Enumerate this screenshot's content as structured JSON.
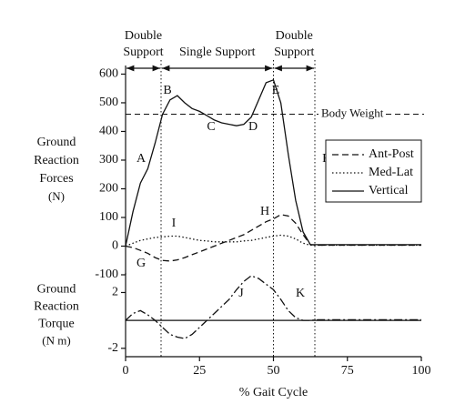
{
  "chart_data": [
    {
      "type": "line",
      "x": [
        0,
        2.5,
        5,
        7.5,
        10,
        12.5,
        15,
        17.5,
        20,
        22.5,
        25,
        27.5,
        30,
        32.5,
        35,
        37.5,
        40,
        42.5,
        45,
        47.5,
        50,
        52.5,
        55,
        57.5,
        60,
        62.5,
        65,
        67.5,
        70,
        72.5,
        75,
        77.5,
        80,
        82.5,
        85,
        87.5,
        90,
        92.5,
        95,
        97.5,
        100
      ],
      "series": [
        {
          "name": "Ant-Post",
          "color": "#111111",
          "dash": "dashed",
          "values": [
            0,
            -5,
            -15,
            -25,
            -40,
            -50,
            -52,
            -48,
            -40,
            -30,
            -20,
            -10,
            0,
            10,
            20,
            30,
            40,
            55,
            70,
            85,
            95,
            110,
            105,
            80,
            40,
            5,
            3,
            3,
            3,
            3,
            3,
            3,
            3,
            3,
            3,
            3,
            3,
            3,
            3,
            3,
            3
          ]
        },
        {
          "name": "Med-Lat",
          "color": "#111111",
          "dash": "dotted",
          "values": [
            0,
            10,
            20,
            25,
            30,
            32,
            35,
            35,
            30,
            25,
            20,
            18,
            15,
            15,
            15,
            15,
            18,
            20,
            25,
            30,
            35,
            38,
            35,
            25,
            10,
            3,
            3,
            3,
            3,
            3,
            3,
            3,
            3,
            3,
            3,
            3,
            3,
            3,
            3,
            3,
            3
          ]
        },
        {
          "name": "Vertical",
          "color": "#111111",
          "dash": "solid",
          "values": [
            0,
            120,
            220,
            270,
            360,
            460,
            510,
            525,
            500,
            480,
            470,
            455,
            440,
            430,
            425,
            420,
            425,
            450,
            510,
            570,
            580,
            500,
            320,
            160,
            50,
            5,
            5,
            5,
            5,
            5,
            5,
            5,
            5,
            5,
            5,
            5,
            5,
            5,
            5,
            5,
            5
          ]
        }
      ],
      "xlim": [
        0,
        100
      ],
      "ylim": [
        -100,
        630
      ],
      "yticks": [
        -100,
        0,
        100,
        200,
        300,
        400,
        500,
        600
      ],
      "y_label": [
        "Ground",
        "Reaction",
        "Forces",
        "(N)"
      ],
      "phases": [
        {
          "label": [
            "Double",
            "Support"
          ],
          "start": 0,
          "end": 12
        },
        {
          "label": [
            "Single Support"
          ],
          "start": 12,
          "end": 50
        },
        {
          "label": [
            "Double",
            "Support"
          ],
          "start": 50,
          "end": 64
        }
      ],
      "reference": {
        "label": "Body Weight",
        "value": 460
      },
      "annotations": [
        "A",
        "B",
        "C",
        "D",
        "E",
        "F",
        "G",
        "H",
        "I"
      ],
      "legend": "right"
    },
    {
      "type": "line",
      "x": [
        0,
        2.5,
        5,
        7.5,
        10,
        12.5,
        15,
        17.5,
        20,
        22.5,
        25,
        27.5,
        30,
        32.5,
        35,
        37.5,
        40,
        42.5,
        45,
        47.5,
        50,
        52.5,
        55,
        57.5,
        60,
        62.5,
        65,
        67.5,
        70,
        72.5,
        75,
        77.5,
        80,
        82.5,
        85,
        87.5,
        90,
        92.5,
        95,
        97.5,
        100
      ],
      "series": [
        {
          "color": "#111111",
          "dash": "dashdot",
          "values": [
            0,
            0.5,
            0.7,
            0.4,
            0,
            -0.5,
            -1,
            -1.2,
            -1.3,
            -1,
            -0.5,
            0,
            0.5,
            1,
            1.5,
            2.2,
            2.8,
            3.2,
            3,
            2.6,
            2.2,
            1.5,
            0.7,
            0.2,
            0,
            0,
            0.05,
            0.05,
            0.05,
            0.05,
            0.05,
            0.05,
            0.05,
            0.05,
            0.05,
            0.05,
            0.05,
            0.05,
            0.05,
            0.05,
            0.05
          ]
        }
      ],
      "xlim": [
        0,
        100
      ],
      "ylim": [
        -2.6,
        3.4
      ],
      "yticks": [
        -2,
        2
      ],
      "xticks": [
        0,
        25,
        50,
        75,
        100
      ],
      "y_label": [
        "Ground",
        "Reaction",
        "Torque",
        "(N m)"
      ],
      "x_label": "% Gait Cycle",
      "annotations": [
        "J",
        "K"
      ]
    }
  ]
}
